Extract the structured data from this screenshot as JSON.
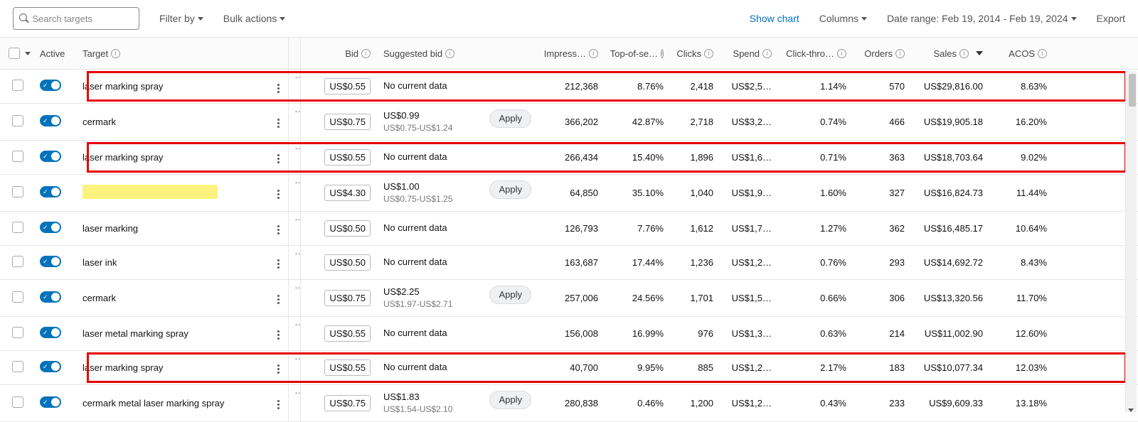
{
  "toolbar": {
    "search_placeholder": "Search targets",
    "filter_label": "Filter by",
    "bulk_label": "Bulk actions",
    "show_chart": "Show chart",
    "columns": "Columns",
    "date_range": "Date range: Feb 19, 2014 - Feb 19, 2024",
    "export": "Export"
  },
  "columns": {
    "active": "Active",
    "target": "Target",
    "bid": "Bid",
    "suggested": "Suggested bid",
    "impress": "Impress…",
    "tos": "Top-of-se…",
    "clicks": "Clicks",
    "spend": "Spend",
    "ctr": "Click-thro…",
    "orders": "Orders",
    "sales": "Sales",
    "acos": "ACOS"
  },
  "apply_label": "Apply",
  "ellipsis": "…",
  "rows": [
    {
      "target": "laser marking spray",
      "bid": "US$0.55",
      "sugg": "No current data",
      "range": "",
      "apply": false,
      "imp": "212,368",
      "tos": "8.76%",
      "clicks": "2,418",
      "spend": "US$2,5…",
      "ctr": "1.14%",
      "orders": "570",
      "sales": "US$29,816.00",
      "acos": "8.63%",
      "hl": true,
      "redact": false
    },
    {
      "target": "cermark",
      "bid": "US$0.75",
      "sugg": "US$0.99",
      "range": "US$0.75-US$1.24",
      "apply": true,
      "imp": "366,202",
      "tos": "42.87%",
      "clicks": "2,718",
      "spend": "US$3,2…",
      "ctr": "0.74%",
      "orders": "466",
      "sales": "US$19,905.18",
      "acos": "16.20%",
      "hl": false,
      "redact": false
    },
    {
      "target": "laser marking spray",
      "bid": "US$0.55",
      "sugg": "No current data",
      "range": "",
      "apply": false,
      "imp": "266,434",
      "tos": "15.40%",
      "clicks": "1,896",
      "spend": "US$1,6…",
      "ctr": "0.71%",
      "orders": "363",
      "sales": "US$18,703.64",
      "acos": "9.02%",
      "hl": true,
      "redact": false
    },
    {
      "target": "",
      "bid": "US$4.30",
      "sugg": "US$1.00",
      "range": "US$0.75-US$1.25",
      "apply": true,
      "imp": "64,850",
      "tos": "35.10%",
      "clicks": "1,040",
      "spend": "US$1,9…",
      "ctr": "1.60%",
      "orders": "327",
      "sales": "US$16,824.73",
      "acos": "11.44%",
      "hl": false,
      "redact": true
    },
    {
      "target": "laser marking",
      "bid": "US$0.50",
      "sugg": "No current data",
      "range": "",
      "apply": false,
      "imp": "126,793",
      "tos": "7.76%",
      "clicks": "1,612",
      "spend": "US$1,7…",
      "ctr": "1.27%",
      "orders": "362",
      "sales": "US$16,485.17",
      "acos": "10.64%",
      "hl": false,
      "redact": false
    },
    {
      "target": "laser ink",
      "bid": "US$0.50",
      "sugg": "No current data",
      "range": "",
      "apply": false,
      "imp": "163,687",
      "tos": "17.44%",
      "clicks": "1,236",
      "spend": "US$1,2…",
      "ctr": "0.76%",
      "orders": "293",
      "sales": "US$14,692.72",
      "acos": "8.43%",
      "hl": false,
      "redact": false
    },
    {
      "target": "cermark",
      "bid": "US$0.75",
      "sugg": "US$2.25",
      "range": "US$1.97-US$2.71",
      "apply": true,
      "imp": "257,006",
      "tos": "24.56%",
      "clicks": "1,701",
      "spend": "US$1,5…",
      "ctr": "0.66%",
      "orders": "306",
      "sales": "US$13,320.56",
      "acos": "11.70%",
      "hl": false,
      "redact": false
    },
    {
      "target": "laser metal marking spray",
      "bid": "US$0.55",
      "sugg": "No current data",
      "range": "",
      "apply": false,
      "imp": "156,008",
      "tos": "16.99%",
      "clicks": "976",
      "spend": "US$1,3…",
      "ctr": "0.63%",
      "orders": "214",
      "sales": "US$11,002.90",
      "acos": "12.60%",
      "hl": false,
      "redact": false
    },
    {
      "target": "laser marking spray",
      "bid": "US$0.55",
      "sugg": "No current data",
      "range": "",
      "apply": false,
      "imp": "40,700",
      "tos": "9.95%",
      "clicks": "885",
      "spend": "US$1,2…",
      "ctr": "2.17%",
      "orders": "183",
      "sales": "US$10,077.34",
      "acos": "12.03%",
      "hl": true,
      "redact": false
    },
    {
      "target": "cermark metal laser marking spray",
      "bid": "US$0.75",
      "sugg": "US$1.83",
      "range": "US$1.54-US$2.10",
      "apply": true,
      "imp": "280,838",
      "tos": "0.46%",
      "clicks": "1,200",
      "spend": "US$1,2…",
      "ctr": "0.43%",
      "orders": "233",
      "sales": "US$9,609.33",
      "acos": "13.18%",
      "hl": false,
      "redact": false
    }
  ],
  "style": {
    "highlight_color": "#e60000",
    "toggle_color": "#0073bb",
    "link_color": "#0073bb",
    "redact_color": "#fcf37e"
  }
}
